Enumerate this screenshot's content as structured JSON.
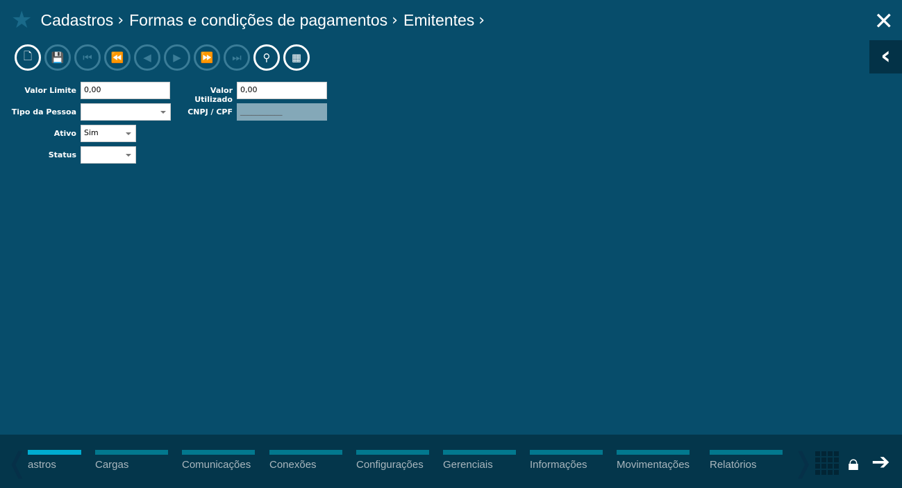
{
  "breadcrumb": [
    "Cadastros",
    "Formas e condições de pagamentos",
    "Emitentes"
  ],
  "toolbar": [
    {
      "name": "new-document",
      "glyph": "🗋",
      "enabled": true
    },
    {
      "name": "save",
      "glyph": "💾",
      "enabled": false
    },
    {
      "name": "first",
      "glyph": "⏮",
      "enabled": false
    },
    {
      "name": "rewind",
      "glyph": "⏪",
      "enabled": false
    },
    {
      "name": "previous",
      "glyph": "◀",
      "enabled": false
    },
    {
      "name": "next",
      "glyph": "▶",
      "enabled": false
    },
    {
      "name": "fast-forward",
      "glyph": "⏩",
      "enabled": false
    },
    {
      "name": "last",
      "glyph": "⏭",
      "enabled": false
    },
    {
      "name": "search",
      "glyph": "⚲",
      "enabled": true
    },
    {
      "name": "grid",
      "glyph": "▦",
      "enabled": true
    }
  ],
  "form": {
    "valor_limite": {
      "label": "Valor Limite",
      "value": "0,00"
    },
    "valor_utilizado": {
      "label": "Valor Utilizado",
      "value": "0,00"
    },
    "tipo_pessoa": {
      "label": "Tipo da Pessoa",
      "value": ""
    },
    "cnpj_cpf": {
      "label": "CNPJ / CPF",
      "value": "___________"
    },
    "ativo": {
      "label": "Ativo",
      "value": "Sim"
    },
    "status": {
      "label": "Status",
      "value": ""
    }
  },
  "bottom_nav": [
    "astros",
    "Cargas",
    "Comunicações",
    "Conexões",
    "Configurações",
    "Gerenciais",
    "Informações",
    "Movimentações",
    "Relatórios"
  ],
  "active_nav": 0,
  "colors": {
    "background": "#074d6b",
    "bottom_bar": "#04364b",
    "nav_bar": "#02788e",
    "nav_active": "#00acd0"
  }
}
